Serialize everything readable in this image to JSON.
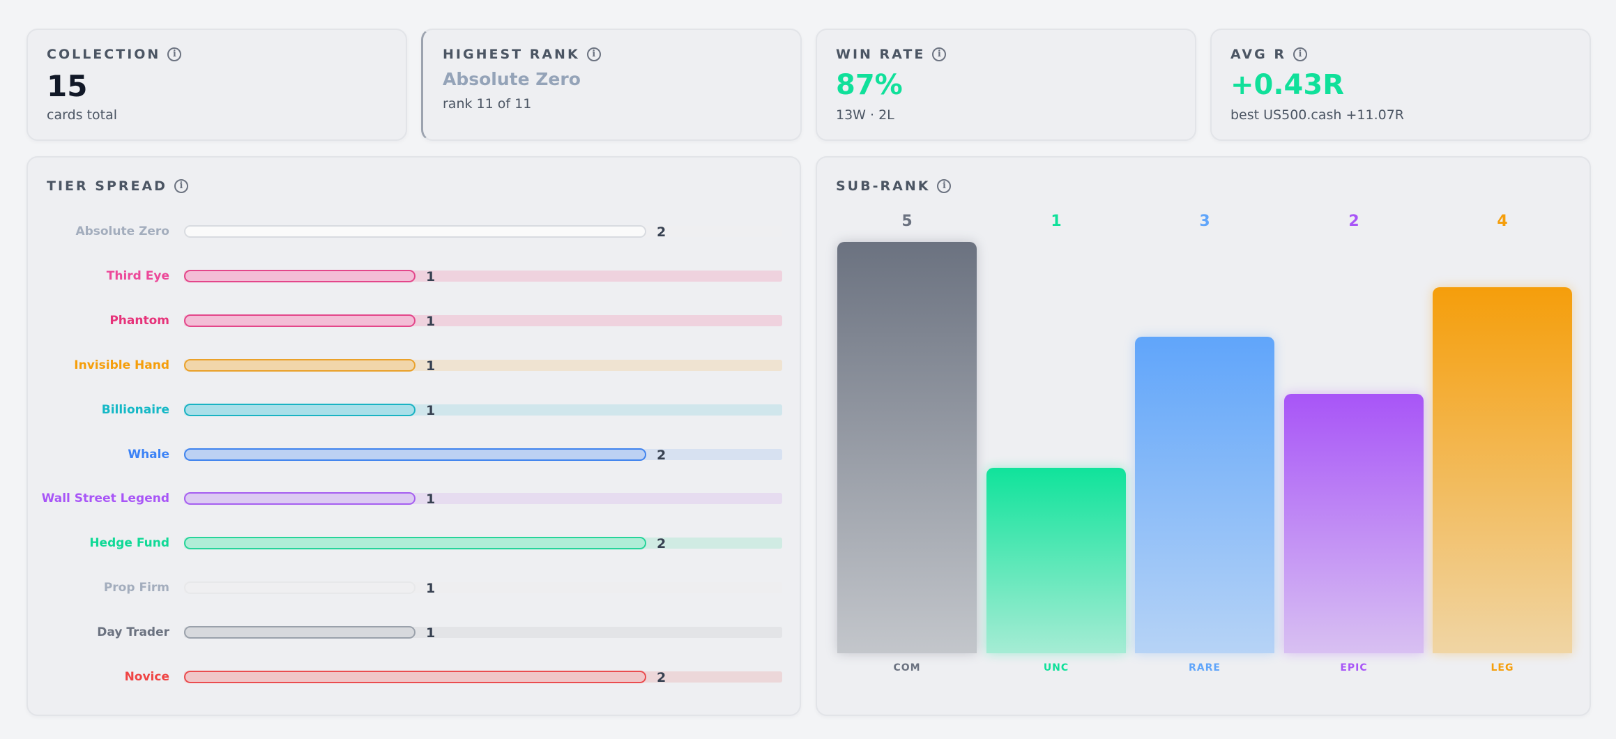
{
  "stats": {
    "collection": {
      "label": "COLLECTION",
      "value": "15",
      "sub": "cards total"
    },
    "highest_rank": {
      "label": "HIGHEST RANK",
      "value": "Absolute Zero",
      "sub": "rank 11 of 11"
    },
    "win_rate": {
      "label": "WIN RATE",
      "value": "87%",
      "sub": "13W · 2L"
    },
    "avg_r": {
      "label": "AVG R",
      "value": "+0.43R",
      "sub": "best US500.cash +11.07R"
    }
  },
  "colors": {
    "accent_green": "#10e09a",
    "muted": "#94a3b8"
  },
  "tier_spread": {
    "label": "TIER SPREAD",
    "max": 2,
    "tiers": [
      {
        "name": "Absolute Zero",
        "count": 2,
        "count_label": "2",
        "color": "#a3adbd",
        "bar_fill": "#fafafa",
        "bar_border": "#d8dbe0",
        "track": "#efeff1"
      },
      {
        "name": "Third Eye",
        "count": 1,
        "count_label": "1",
        "color": "#ec4899",
        "bar_fill": "#f3bdd6",
        "bar_border": "#e3468a",
        "track": "#efd2de"
      },
      {
        "name": "Phantom",
        "count": 1,
        "count_label": "1",
        "color": "#e6337a",
        "bar_fill": "#f3bdd6",
        "bar_border": "#e3468a",
        "track": "#efd2de"
      },
      {
        "name": "Invisible Hand",
        "count": 1,
        "count_label": "1",
        "color": "#f59e0b",
        "bar_fill": "#f1d6aa",
        "bar_border": "#eaa12a",
        "track": "#efe3d1"
      },
      {
        "name": "Billionaire",
        "count": 1,
        "count_label": "1",
        "color": "#14b8c6",
        "bar_fill": "#a9dfe9",
        "bar_border": "#1ab3c3",
        "track": "#d0e6ec"
      },
      {
        "name": "Whale",
        "count": 2,
        "count_label": "2",
        "color": "#3b82f6",
        "bar_fill": "#bcd1f3",
        "bar_border": "#3f83ee",
        "track": "#d7e1f1"
      },
      {
        "name": "Wall Street Legend",
        "count": 1,
        "count_label": "1",
        "color": "#a855f7",
        "bar_fill": "#dccbf2",
        "bar_border": "#a55ef0",
        "track": "#e6dcf0"
      },
      {
        "name": "Hedge Fund",
        "count": 2,
        "count_label": "2",
        "color": "#10d996",
        "bar_fill": "#b0edd7",
        "bar_border": "#26d49a",
        "track": "#d0ebe3"
      },
      {
        "name": "Prop Firm",
        "count": 1,
        "count_label": "1",
        "color": "#a3adbd",
        "bar_fill": "#efeff1",
        "bar_border": "#e7e8ea",
        "track": "#eeeef0"
      },
      {
        "name": "Day Trader",
        "count": 1,
        "count_label": "1",
        "color": "#6b7280",
        "bar_fill": "#d7d9dd",
        "bar_border": "#9aa1ab",
        "track": "#e3e4e7"
      },
      {
        "name": "Novice",
        "count": 2,
        "count_label": "2",
        "color": "#ef4444",
        "bar_fill": "#f0c6c8",
        "bar_border": "#ea4c4f",
        "track": "#ecd7d9"
      }
    ]
  },
  "sub_rank": {
    "label": "SUB-RANK",
    "chart_data": {
      "type": "bar",
      "categories": [
        "COM",
        "UNC",
        "RARE",
        "EPIC",
        "LEG"
      ],
      "values": [
        5,
        1,
        3,
        2,
        4
      ],
      "heights_rel": [
        1.0,
        0.45,
        0.77,
        0.63,
        0.89
      ],
      "colors": {
        "COM": {
          "top": "#6b7280",
          "bottom": "#c3c6cb",
          "label": "#6b7280"
        },
        "UNC": {
          "top": "#10e39b",
          "bottom": "#a5ecd4",
          "label": "#10e09a"
        },
        "RARE": {
          "top": "#60a5fa",
          "bottom": "#b6d3f6",
          "label": "#60a5fa"
        },
        "EPIC": {
          "top": "#a855f7",
          "bottom": "#d8c0f2",
          "label": "#a855f7"
        },
        "LEG": {
          "top": "#f59e0b",
          "bottom": "#f0d5a4",
          "label": "#f59e0b"
        }
      },
      "title": "",
      "xlabel": "",
      "ylabel": ""
    }
  }
}
